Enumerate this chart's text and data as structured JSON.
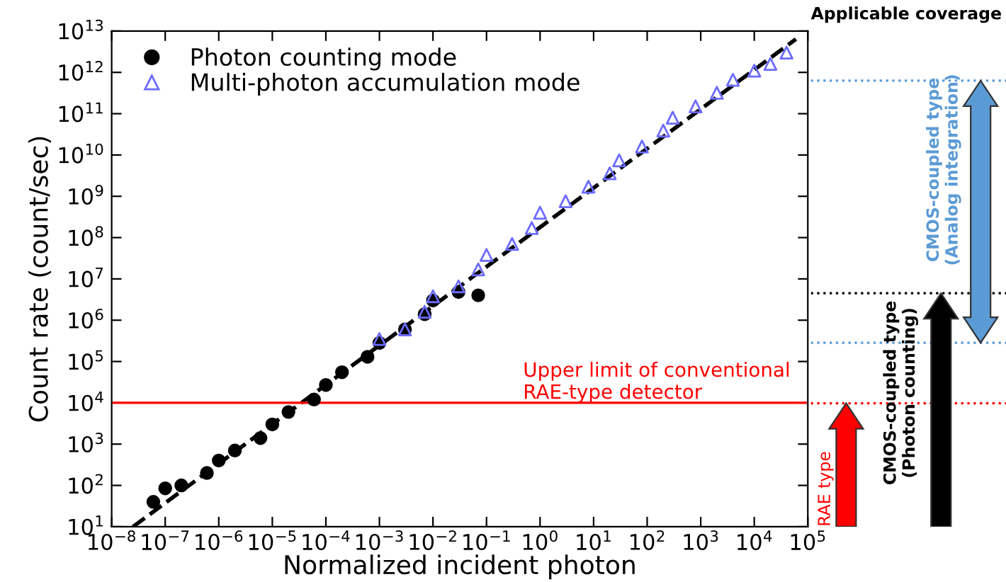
{
  "chart_data": [
    {
      "type": "scatter",
      "xlabel": "Normalized incident photon",
      "ylabel": "Count rate (count/sec)",
      "log": "xy",
      "xlim": [
        1e-08,
        100000
      ],
      "ylim": [
        10,
        10000000000000.0
      ],
      "xticks": [
        {
          "value": 1e-08,
          "label": "10$^{−8}$"
        },
        {
          "value": 1e-07,
          "label": "10$^{−7}$"
        },
        {
          "value": 1e-06,
          "label": "10$^{−6}$"
        },
        {
          "value": 1e-05,
          "label": "10$^{−5}$"
        },
        {
          "value": 0.0001,
          "label": "10$^{−4}$"
        },
        {
          "value": 0.001,
          "label": "10$^{−3}$"
        },
        {
          "value": 0.01,
          "label": "10$^{−2}$"
        },
        {
          "value": 0.1,
          "label": "10$^{−1}$"
        },
        {
          "value": 1,
          "label": "10$^{0}$"
        },
        {
          "value": 10,
          "label": "10$^{1}$"
        },
        {
          "value": 100,
          "label": "10$^{2}$"
        },
        {
          "value": 1000,
          "label": "10$^{3}$"
        },
        {
          "value": 10000,
          "label": "10$^{4}$"
        },
        {
          "value": 100000,
          "label": "10$^{5}$"
        }
      ],
      "yticks": [
        {
          "value": 10,
          "label": "10$^{1}$"
        },
        {
          "value": 100,
          "label": "10$^{2}$"
        },
        {
          "value": 1000,
          "label": "10$^{3}$"
        },
        {
          "value": 10000,
          "label": "10$^{4}$"
        },
        {
          "value": 100000,
          "label": "10$^{5}$"
        },
        {
          "value": 1000000.0,
          "label": "10$^{6}$"
        },
        {
          "value": 10000000.0,
          "label": "10$^{7}$"
        },
        {
          "value": 100000000.0,
          "label": "10$^{8}$"
        },
        {
          "value": 1000000000.0,
          "label": "10$^{9}$"
        },
        {
          "value": 10000000000.0,
          "label": "10$^{10}$"
        },
        {
          "value": 100000000000.0,
          "label": "10$^{11}$"
        },
        {
          "value": 1000000000000.0,
          "label": "10$^{12}$"
        },
        {
          "value": 10000000000000.0,
          "label": "10$^{13}$"
        }
      ],
      "legend": "top left",
      "grid": false,
      "series": [
        {
          "name": "Photon counting mode",
          "color": "#000000",
          "marker": "circle",
          "x": [
            6e-08,
            1e-07,
            2e-07,
            6e-07,
            1e-06,
            2e-06,
            6e-06,
            1e-05,
            2e-05,
            6e-05,
            0.0001,
            0.0002,
            0.0006,
            0.001,
            0.003,
            0.007,
            0.01,
            0.03,
            0.07
          ],
          "values": [
            40,
            85,
            100,
            200,
            400,
            700,
            1400,
            3000,
            6000,
            12000,
            27000,
            55000,
            130000,
            280000,
            600000,
            1400000,
            3000000,
            4800000,
            4000000
          ]
        },
        {
          "name": "Multi-photon accumulation mode",
          "color": "#6b6bff",
          "marker": "triangle",
          "x": [
            0.001,
            0.003,
            0.007,
            0.01,
            0.03,
            0.07,
            0.1,
            0.3,
            0.7,
            1,
            3,
            8,
            20,
            30,
            80,
            200,
            300,
            800,
            2000,
            4000,
            10000,
            20000,
            40000
          ],
          "values": [
            350000,
            600000,
            1600000,
            3800000,
            6600000,
            17000000.0,
            38000000.0,
            70000000.0,
            170000000.0,
            400000000.0,
            760000000.0,
            1700000000.0,
            3600000000.0,
            7400000000.0,
            16000000000.0,
            39000000000.0,
            80000000000.0,
            150000000000.0,
            320000000000.0,
            660000000000.0,
            1100000000000.0,
            1600000000000.0,
            3000000000000.0
          ]
        },
        {
          "type": "line",
          "color": "#000000",
          "line_style": "dashed",
          "x": [
            2.5e-08,
            60000
          ],
          "values": [
            10,
            6400000000000.0
          ]
        }
      ],
      "ref_lines": [
        {
          "axis": "y",
          "value": 10000,
          "label": "Upper limit of conventional\nRAE-type detector",
          "color": "#ff0000",
          "line_style": "solid"
        }
      ]
    },
    {
      "type": "other",
      "title": "Applicable coverage",
      "annotations": [
        "RAE type",
        "CMOS-coupled type\n(Photon counting)",
        "CMOS-coupled type\n(Analog integration)"
      ]
    }
  ]
}
